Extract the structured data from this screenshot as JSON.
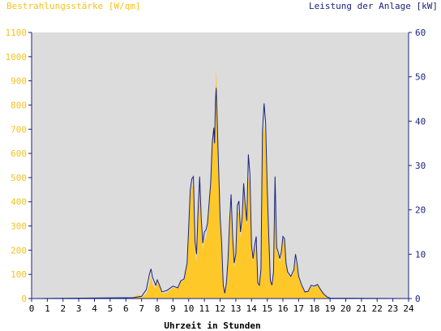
{
  "colors": {
    "irradiance": "#ffc829",
    "irradiance_axis": "#f5c21a",
    "power": "#1a237e",
    "plot_bg": "#dcdcdc",
    "axis": "#1a237e",
    "grid": "#1a237e"
  },
  "chart_data": {
    "type": "area",
    "left_axis_title": "Bestrahlungsstärke [W/qm]",
    "right_axis_title": "Leistung der Anlage [kW]",
    "xlabel": "Uhrzeit in Stunden",
    "xlim": [
      0,
      24
    ],
    "ylim_left": [
      0,
      1100
    ],
    "ylim_right": [
      0,
      60
    ],
    "x_ticks": [
      "0",
      "1",
      "2",
      "3",
      "4",
      "5",
      "6",
      "7",
      "8",
      "9",
      "10",
      "11",
      "12",
      "13",
      "14",
      "15",
      "16",
      "17",
      "18",
      "19",
      "20",
      "21",
      "22",
      "23",
      "24"
    ],
    "y_left_ticks": [
      "0",
      "100",
      "200",
      "300",
      "400",
      "500",
      "600",
      "700",
      "800",
      "900",
      "1000",
      "1100"
    ],
    "y_right_ticks": [
      "0",
      "10",
      "20",
      "30",
      "40",
      "50",
      "60"
    ],
    "series": [
      {
        "name": "Bestrahlungsstärke [W/qm]",
        "axis": "left",
        "style": "area",
        "points": [
          [
            0,
            0
          ],
          [
            6.2,
            0
          ],
          [
            6.5,
            8
          ],
          [
            6.8,
            15
          ],
          [
            7.0,
            5
          ],
          [
            7.3,
            20
          ],
          [
            7.5,
            60
          ],
          [
            7.6,
            95
          ],
          [
            7.7,
            60
          ],
          [
            7.9,
            40
          ],
          [
            8.0,
            70
          ],
          [
            8.1,
            60
          ],
          [
            8.3,
            20
          ],
          [
            8.6,
            25
          ],
          [
            9.0,
            45
          ],
          [
            9.3,
            40
          ],
          [
            9.5,
            70
          ],
          [
            9.7,
            75
          ],
          [
            9.9,
            140
          ],
          [
            10.0,
            300
          ],
          [
            10.1,
            420
          ],
          [
            10.2,
            470
          ],
          [
            10.3,
            460
          ],
          [
            10.4,
            200
          ],
          [
            10.5,
            150
          ],
          [
            10.6,
            350
          ],
          [
            10.7,
            460
          ],
          [
            10.8,
            300
          ],
          [
            10.9,
            200
          ],
          [
            11.0,
            240
          ],
          [
            11.1,
            250
          ],
          [
            11.2,
            300
          ],
          [
            11.4,
            480
          ],
          [
            11.5,
            660
          ],
          [
            11.6,
            720
          ],
          [
            11.65,
            660
          ],
          [
            11.7,
            830
          ],
          [
            11.75,
            950
          ],
          [
            11.8,
            860
          ],
          [
            11.9,
            600
          ],
          [
            12.0,
            350
          ],
          [
            12.1,
            230
          ],
          [
            12.2,
            60
          ],
          [
            12.3,
            20
          ],
          [
            12.4,
            60
          ],
          [
            12.5,
            150
          ],
          [
            12.6,
            300
          ],
          [
            12.7,
            370
          ],
          [
            12.8,
            240
          ],
          [
            12.9,
            130
          ],
          [
            13.0,
            160
          ],
          [
            13.1,
            350
          ],
          [
            13.2,
            360
          ],
          [
            13.3,
            250
          ],
          [
            13.4,
            300
          ],
          [
            13.5,
            470
          ],
          [
            13.6,
            370
          ],
          [
            13.7,
            300
          ],
          [
            13.8,
            500
          ],
          [
            13.9,
            480
          ],
          [
            14.0,
            200
          ],
          [
            14.1,
            150
          ],
          [
            14.2,
            200
          ],
          [
            14.3,
            240
          ],
          [
            14.4,
            60
          ],
          [
            14.5,
            50
          ],
          [
            14.6,
            110
          ],
          [
            14.7,
            680
          ],
          [
            14.8,
            720
          ],
          [
            14.9,
            650
          ],
          [
            15.0,
            450
          ],
          [
            15.1,
            250
          ],
          [
            15.2,
            70
          ],
          [
            15.3,
            50
          ],
          [
            15.4,
            100
          ],
          [
            15.5,
            480
          ],
          [
            15.6,
            200
          ],
          [
            15.7,
            180
          ],
          [
            15.8,
            150
          ],
          [
            15.9,
            170
          ],
          [
            16.0,
            250
          ],
          [
            16.1,
            240
          ],
          [
            16.2,
            140
          ],
          [
            16.3,
            100
          ],
          [
            16.5,
            90
          ],
          [
            16.7,
            110
          ],
          [
            16.8,
            160
          ],
          [
            16.9,
            130
          ],
          [
            17.0,
            80
          ],
          [
            17.2,
            50
          ],
          [
            17.4,
            25
          ],
          [
            17.6,
            30
          ],
          [
            17.8,
            50
          ],
          [
            18.0,
            45
          ],
          [
            18.2,
            60
          ],
          [
            18.4,
            40
          ],
          [
            18.6,
            20
          ],
          [
            18.8,
            8
          ],
          [
            19.0,
            0
          ],
          [
            24,
            0
          ]
        ]
      },
      {
        "name": "Leistung der Anlage [kW]",
        "axis": "right",
        "style": "line",
        "points": [
          [
            0,
            0
          ],
          [
            6.5,
            0.2
          ],
          [
            7.0,
            0.5
          ],
          [
            7.3,
            2.0
          ],
          [
            7.5,
            5.5
          ],
          [
            7.6,
            6.7
          ],
          [
            7.7,
            4.8
          ],
          [
            7.9,
            3.0
          ],
          [
            8.0,
            4.2
          ],
          [
            8.1,
            3.4
          ],
          [
            8.3,
            1.5
          ],
          [
            8.6,
            1.8
          ],
          [
            9.0,
            2.8
          ],
          [
            9.3,
            2.4
          ],
          [
            9.5,
            4.0
          ],
          [
            9.7,
            4.4
          ],
          [
            9.9,
            8.0
          ],
          [
            10.0,
            16.0
          ],
          [
            10.1,
            24.5
          ],
          [
            10.2,
            27.0
          ],
          [
            10.3,
            27.5
          ],
          [
            10.4,
            13.0
          ],
          [
            10.5,
            10.0
          ],
          [
            10.6,
            20.0
          ],
          [
            10.7,
            27.5
          ],
          [
            10.8,
            18.0
          ],
          [
            10.9,
            12.5
          ],
          [
            11.0,
            15.0
          ],
          [
            11.1,
            15.5
          ],
          [
            11.2,
            17.0
          ],
          [
            11.4,
            26.0
          ],
          [
            11.5,
            35.0
          ],
          [
            11.6,
            38.5
          ],
          [
            11.65,
            35.0
          ],
          [
            11.7,
            44.0
          ],
          [
            11.75,
            47.5
          ],
          [
            11.8,
            42.0
          ],
          [
            11.9,
            30.0
          ],
          [
            12.0,
            18.5
          ],
          [
            12.1,
            12.5
          ],
          [
            12.2,
            3.0
          ],
          [
            12.3,
            1.2
          ],
          [
            12.4,
            3.5
          ],
          [
            12.5,
            8.5
          ],
          [
            12.6,
            17.0
          ],
          [
            12.7,
            23.5
          ],
          [
            12.8,
            14.0
          ],
          [
            12.9,
            8.0
          ],
          [
            13.0,
            10.0
          ],
          [
            13.1,
            21.0
          ],
          [
            13.2,
            22.0
          ],
          [
            13.3,
            15.0
          ],
          [
            13.4,
            18.0
          ],
          [
            13.5,
            26.0
          ],
          [
            13.6,
            21.0
          ],
          [
            13.7,
            17.5
          ],
          [
            13.8,
            32.5
          ],
          [
            13.9,
            28.0
          ],
          [
            14.0,
            12.0
          ],
          [
            14.1,
            9.0
          ],
          [
            14.2,
            12.0
          ],
          [
            14.3,
            14.0
          ],
          [
            14.4,
            3.5
          ],
          [
            14.5,
            3.0
          ],
          [
            14.6,
            6.5
          ],
          [
            14.7,
            38.0
          ],
          [
            14.8,
            44.0
          ],
          [
            14.9,
            39.5
          ],
          [
            15.0,
            25.0
          ],
          [
            15.1,
            14.0
          ],
          [
            15.2,
            4.0
          ],
          [
            15.3,
            3.0
          ],
          [
            15.4,
            6.0
          ],
          [
            15.5,
            27.5
          ],
          [
            15.6,
            11.5
          ],
          [
            15.7,
            10.5
          ],
          [
            15.8,
            9.0
          ],
          [
            15.9,
            10.5
          ],
          [
            16.0,
            14.0
          ],
          [
            16.1,
            13.5
          ],
          [
            16.2,
            8.0
          ],
          [
            16.3,
            6.0
          ],
          [
            16.5,
            5.0
          ],
          [
            16.7,
            6.5
          ],
          [
            16.8,
            10.0
          ],
          [
            16.9,
            8.0
          ],
          [
            17.0,
            5.0
          ],
          [
            17.2,
            3.0
          ],
          [
            17.4,
            1.5
          ],
          [
            17.6,
            1.6
          ],
          [
            17.8,
            3.0
          ],
          [
            18.0,
            2.8
          ],
          [
            18.2,
            3.2
          ],
          [
            18.4,
            2.0
          ],
          [
            18.6,
            1.0
          ],
          [
            18.8,
            0.4
          ],
          [
            19.0,
            0.1
          ],
          [
            24,
            0
          ]
        ]
      }
    ]
  }
}
